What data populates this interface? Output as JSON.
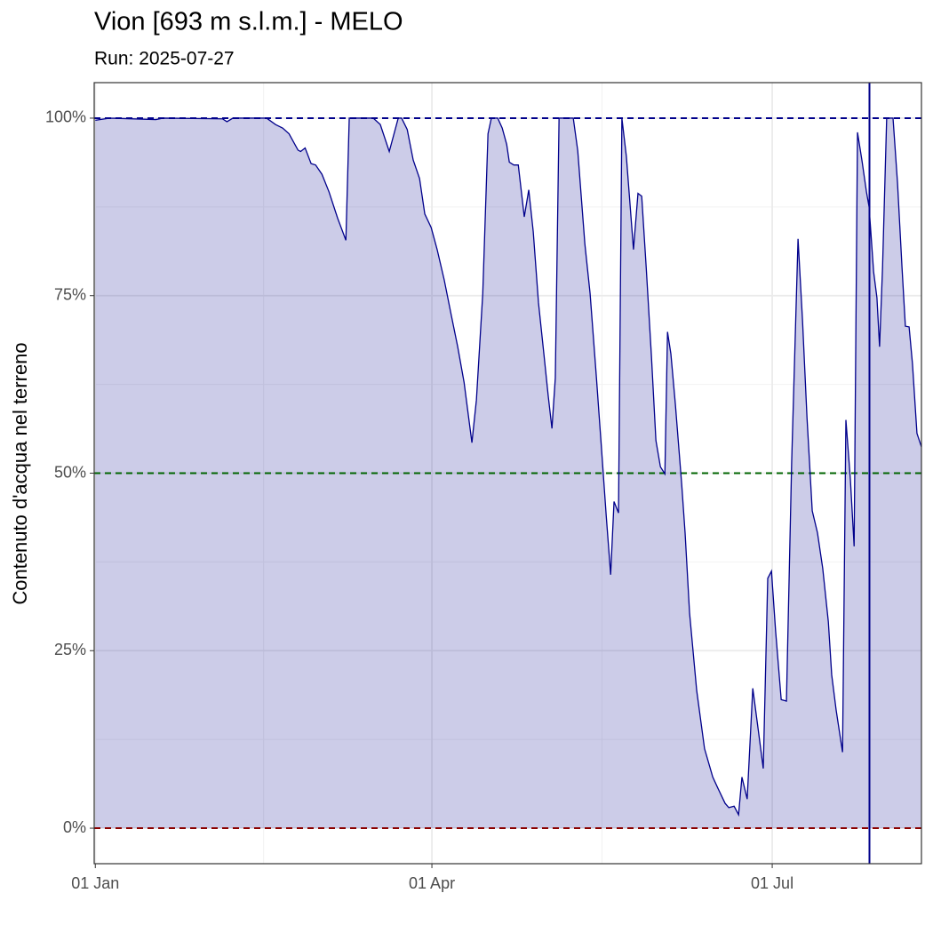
{
  "chart_data": {
    "type": "area",
    "title": "Vion [693 m s.l.m.] - MELO",
    "subtitle": "Run: 2025-07-27",
    "y_label": "Contenuto d'acqua nel terreno",
    "color": "#00008b",
    "fill": "#00008b",
    "fill_opacity": 0.2,
    "grid": true,
    "xlim": [
      -0.3,
      220.9
    ],
    "ylim": [
      -5,
      105
    ],
    "xticks": [
      {
        "value": 0,
        "label": "01 Jan"
      },
      {
        "value": 90,
        "label": "01 Apr"
      },
      {
        "value": 181,
        "label": "01 Jul"
      }
    ],
    "yticks": [
      {
        "value": 0,
        "label": "0%"
      },
      {
        "value": 25,
        "label": "25%"
      },
      {
        "value": 50,
        "label": "50%"
      },
      {
        "value": 75,
        "label": "75%"
      },
      {
        "value": 100,
        "label": "100%"
      }
    ],
    "hlines": [
      {
        "value": 0,
        "color": "#8b0000"
      },
      {
        "value": 50,
        "color": "#006400"
      },
      {
        "value": 100,
        "color": "#00008b"
      }
    ],
    "vline": {
      "value": 207,
      "color": "#00008b"
    },
    "x": [
      0,
      3.8,
      16.2,
      18.1,
      34.0,
      35.2,
      36.8,
      45.8,
      48.2,
      50.1,
      51.8,
      54.2,
      54.9,
      56.1,
      57.7,
      58.9,
      60.6,
      62.5,
      64.8,
      67.0,
      67.9,
      74.3,
      76.2,
      78.6,
      81.0,
      81.9,
      83.4,
      85.0,
      86.7,
      88.1,
      89.8,
      91.4,
      93.3,
      95.2,
      96.9,
      98.6,
      100.7,
      101.9,
      103.6,
      105.0,
      105.9,
      107.6,
      108.8,
      110.0,
      110.7,
      111.9,
      113.1,
      114.7,
      115.9,
      117.1,
      118.5,
      120.0,
      121.1,
      122.1,
      123.0,
      124.0,
      127.8,
      129.0,
      130.9,
      132.3,
      134.0,
      135.6,
      136.6,
      137.8,
      138.7,
      139.9,
      140.8,
      142.0,
      143.9,
      145.1,
      146.1,
      147.3,
      148.7,
      149.9,
      151.1,
      152.3,
      153.0,
      153.9,
      155.1,
      156.8,
      157.7,
      158.9,
      160.8,
      162.9,
      165.1,
      166.5,
      168.4,
      169.4,
      170.8,
      172.0,
      172.9,
      174.3,
      175.8,
      177.2,
      178.6,
      179.8,
      180.8,
      181.9,
      183.4,
      184.8,
      186.2,
      187.9,
      189.1,
      190.3,
      191.7,
      193.1,
      194.5,
      196.0,
      196.9,
      198.1,
      199.8,
      200.7,
      201.9,
      202.9,
      203.8,
      205.0,
      206.2,
      206.9,
      208.1,
      209.0,
      209.7,
      210.5,
      211.6,
      213.3,
      214.5,
      215.7,
      216.6,
      217.6,
      218.5,
      219.7,
      220.9
    ],
    "values": [
      99.7,
      100,
      99.8,
      100,
      99.9,
      99.5,
      100,
      100,
      99.1,
      98.6,
      97.8,
      95.5,
      95.3,
      95.8,
      93.6,
      93.4,
      92.1,
      89.6,
      85.9,
      82.8,
      100,
      100,
      99.1,
      95.3,
      100,
      100,
      98.4,
      94.1,
      91.5,
      86.5,
      84.6,
      81.5,
      77.2,
      72.2,
      67.8,
      62.8,
      54.3,
      60.3,
      75.3,
      97.8,
      100,
      100,
      98.6,
      96.3,
      93.8,
      93.4,
      93.4,
      86.1,
      89.9,
      84.0,
      74.0,
      66.5,
      60.9,
      56.3,
      63.4,
      100,
      100,
      95.4,
      82.3,
      75.3,
      63.4,
      51.6,
      44.1,
      35.7,
      46.0,
      44.4,
      100,
      94.6,
      81.5,
      89.4,
      89.0,
      79.0,
      66.5,
      54.6,
      50.9,
      49.9,
      69.9,
      66.8,
      59.7,
      48.4,
      41.6,
      30.3,
      19.4,
      11.2,
      7.2,
      5.6,
      3.5,
      2.9,
      3.1,
      1.9,
      7.2,
      4.1,
      19.7,
      14.1,
      8.4,
      35.2,
      36.2,
      27.8,
      18.1,
      17.9,
      51.6,
      83.0,
      71.5,
      57.8,
      44.7,
      41.6,
      36.6,
      29.1,
      21.6,
      16.6,
      10.7,
      57.5,
      49.1,
      39.7,
      98.0,
      94.0,
      89.6,
      87.5,
      78.4,
      74.7,
      67.8,
      79.0,
      100,
      100,
      90.9,
      79.0,
      70.7,
      70.6,
      65.4,
      55.6,
      53.7
    ]
  }
}
